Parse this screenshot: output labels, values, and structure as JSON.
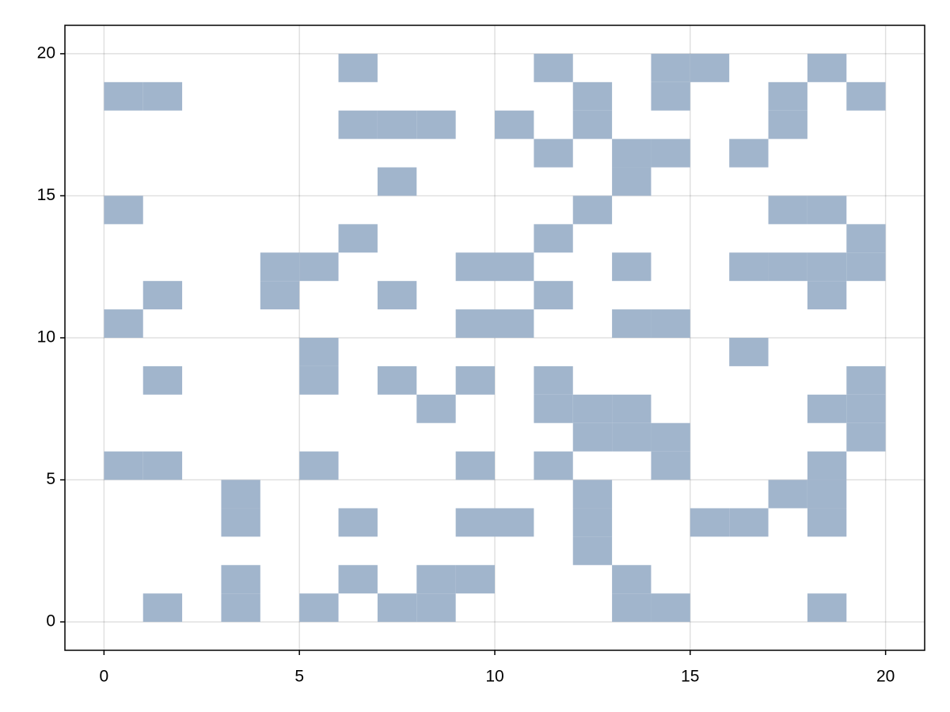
{
  "chart_data": {
    "type": "heatmap",
    "color": "#a1b5cc",
    "grid": true,
    "xlim": [
      -1,
      21
    ],
    "ylim": [
      -1,
      21
    ],
    "xticks": [
      0,
      5,
      10,
      15,
      20
    ],
    "yticks": [
      0,
      5,
      10,
      15,
      20
    ],
    "x": [
      1,
      3,
      5,
      7,
      8,
      13,
      14,
      18,
      3,
      6,
      8,
      9,
      13,
      12,
      3,
      6,
      9,
      10,
      12,
      15,
      16,
      18,
      3,
      12,
      17,
      18,
      0,
      1,
      5,
      9,
      11,
      14,
      18,
      12,
      13,
      14,
      19,
      8,
      11,
      12,
      13,
      18,
      19,
      1,
      5,
      7,
      9,
      11,
      19,
      5,
      16,
      0,
      9,
      10,
      13,
      14,
      1,
      4,
      7,
      11,
      18,
      4,
      5,
      9,
      10,
      13,
      16,
      17,
      18,
      19,
      6,
      11,
      19,
      0,
      12,
      17,
      18,
      7,
      13,
      11,
      13,
      14,
      16,
      6,
      7,
      8,
      10,
      12,
      17,
      0,
      1,
      12,
      14,
      17,
      19,
      6,
      11,
      14,
      15,
      18
    ],
    "y": [
      0,
      0,
      0,
      0,
      0,
      0,
      0,
      0,
      1,
      1,
      1,
      1,
      1,
      2,
      3,
      3,
      3,
      3,
      3,
      3,
      3,
      3,
      4,
      4,
      4,
      4,
      5,
      5,
      5,
      5,
      5,
      5,
      5,
      6,
      6,
      6,
      6,
      7,
      7,
      7,
      7,
      7,
      7,
      8,
      8,
      8,
      8,
      8,
      8,
      9,
      9,
      10,
      10,
      10,
      10,
      10,
      11,
      11,
      11,
      11,
      11,
      12,
      12,
      12,
      12,
      12,
      12,
      12,
      12,
      12,
      13,
      13,
      13,
      14,
      14,
      14,
      14,
      15,
      15,
      16,
      16,
      16,
      16,
      17,
      17,
      17,
      17,
      17,
      17,
      18,
      18,
      18,
      18,
      18,
      18,
      19,
      19,
      19,
      19,
      19
    ]
  }
}
